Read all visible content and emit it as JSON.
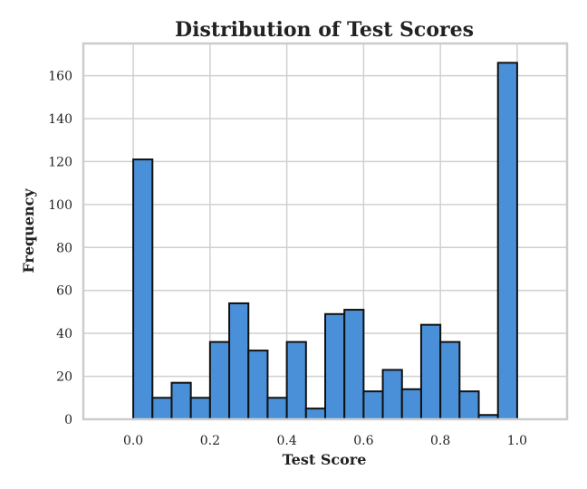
{
  "chart_data": {
    "type": "bar",
    "title": "Distribution of Test Scores",
    "xlabel": "Test Score",
    "ylabel": "Frequency",
    "bin_edges": [
      0.0,
      0.05,
      0.1,
      0.15,
      0.2,
      0.25,
      0.3,
      0.35,
      0.4,
      0.45,
      0.5,
      0.55,
      0.6,
      0.65,
      0.7,
      0.75,
      0.8,
      0.85,
      0.9,
      0.95,
      1.0
    ],
    "values": [
      121,
      10,
      17,
      10,
      36,
      54,
      32,
      10,
      36,
      5,
      49,
      51,
      13,
      23,
      14,
      44,
      36,
      13,
      2,
      166
    ],
    "xlim": [
      -0.13,
      1.13
    ],
    "ylim": [
      0,
      175
    ],
    "xticks": [
      0.0,
      0.2,
      0.4,
      0.6,
      0.8,
      1.0
    ],
    "xtick_labels": [
      "0.0",
      "0.2",
      "0.4",
      "0.6",
      "0.8",
      "1.0"
    ],
    "yticks": [
      0,
      20,
      40,
      60,
      80,
      100,
      120,
      140,
      160
    ],
    "ytick_labels": [
      "0",
      "20",
      "40",
      "60",
      "80",
      "100",
      "120",
      "140",
      "160"
    ],
    "grid": true,
    "colors": {
      "bar_fill": "#4a90d9",
      "bar_edge": "#111111",
      "grid": "#d0d0d0",
      "frame": "#cccccc"
    }
  }
}
